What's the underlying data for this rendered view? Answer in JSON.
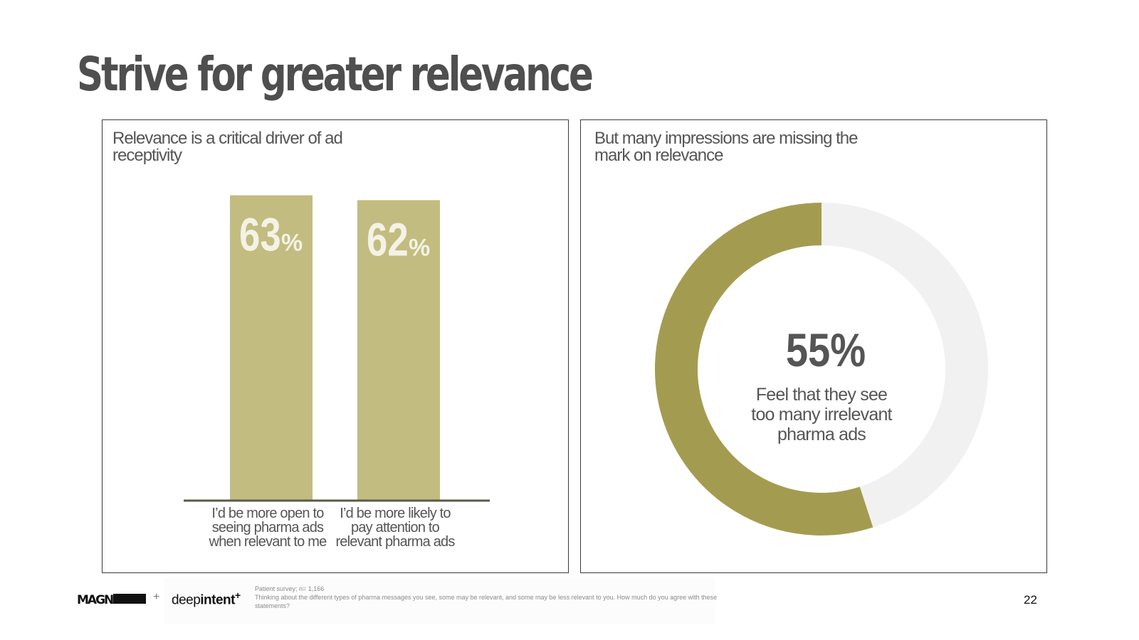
{
  "title": "Strive for greater relevance",
  "left_panel": {
    "heading": "Relevance is a critical driver of ad receptivity"
  },
  "right_panel": {
    "heading": "But many impressions are missing the mark on relevance"
  },
  "footer": {
    "magna_logo": "MAGNA",
    "plus": "+",
    "deepintent_light": "deep",
    "deepintent_bold": "intent",
    "deepintent_sup": "+",
    "source_line1": "Patient survey; n= 1,166",
    "source_line2": "Thinking about the different types of pharma messages you see, some may be relevant, and some may be less relevant to you. How much do you agree with these statements?",
    "page_number": "22"
  },
  "colors": {
    "bar": "#c2bc80",
    "donut_fill": "#a39c50",
    "donut_track": "#f1f1f1",
    "bar_label": "#f4f2e6",
    "axis": "#5a5a48"
  },
  "chart_data": [
    {
      "type": "bar",
      "categories": [
        [
          "I’d be more open to",
          "seeing pharma ads",
          "when relevant to me"
        ],
        [
          "I’d be more likely to",
          "pay attention to",
          "relevant pharma ads"
        ]
      ],
      "values": [
        63,
        62
      ],
      "value_labels": [
        "63",
        "62"
      ],
      "unit": "%",
      "ylim": [
        0,
        65
      ]
    },
    {
      "type": "pie",
      "variant": "donut",
      "values": [
        55,
        45
      ],
      "center_value": "55%",
      "center_text": [
        "Feel that they see",
        "too many irrelevant",
        "pharma ads"
      ]
    }
  ]
}
